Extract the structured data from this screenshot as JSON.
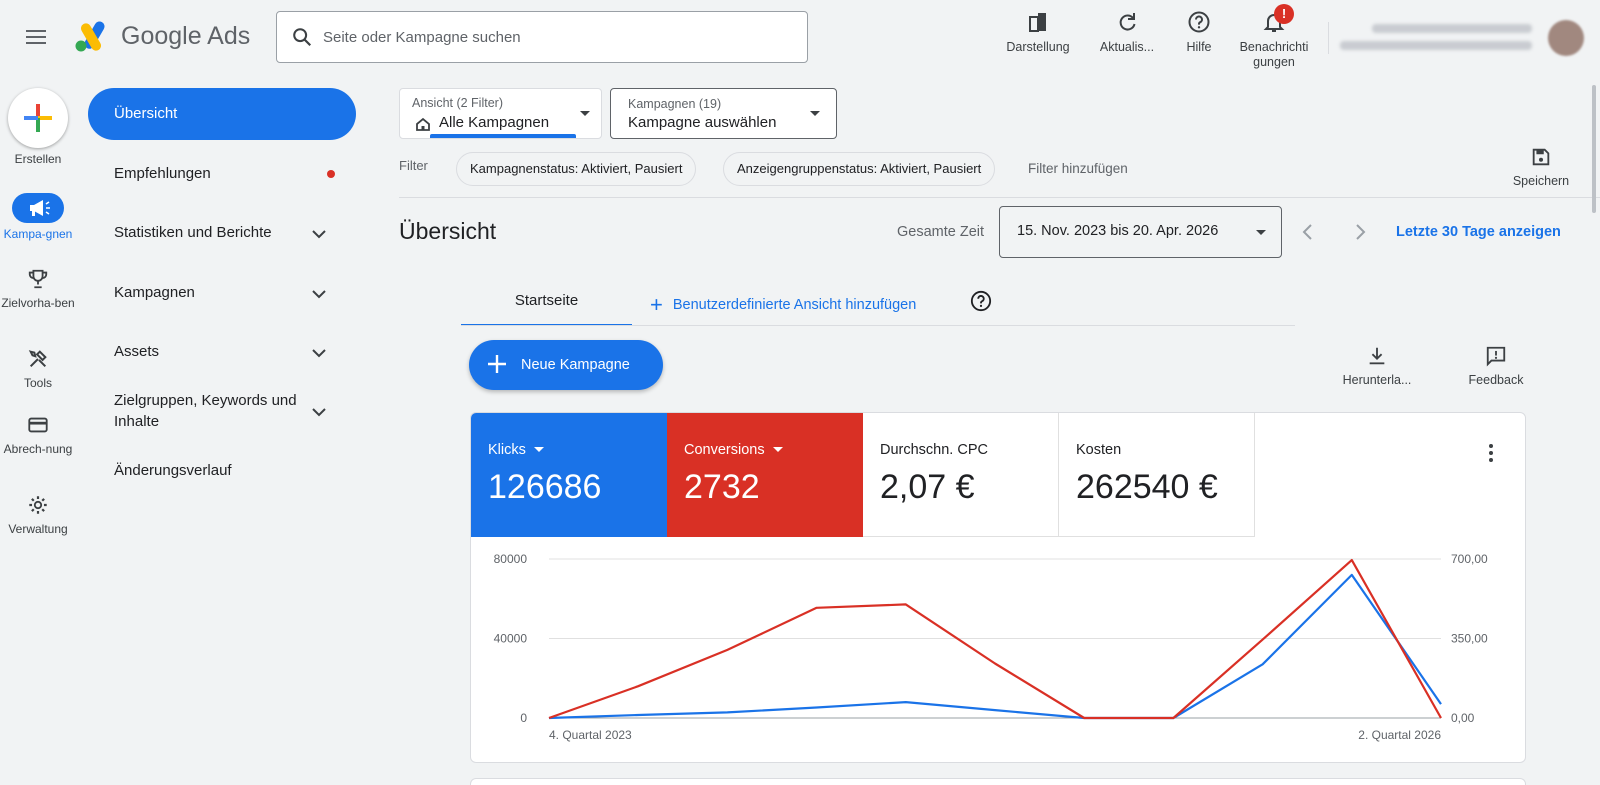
{
  "app": {
    "name": "Google Ads"
  },
  "search": {
    "placeholder": "Seite oder Kampagne suchen"
  },
  "top_actions": [
    {
      "label": "Darstellung",
      "icon": "appearance-icon"
    },
    {
      "label": "Aktualis...",
      "icon": "refresh-icon"
    },
    {
      "label": "Hilfe",
      "icon": "help-icon"
    },
    {
      "label": "Benachrichti gungen",
      "icon": "bell-icon",
      "badge": "!"
    }
  ],
  "rail": [
    {
      "label": "Erstellen",
      "icon": "plus-icon"
    },
    {
      "label": "Kampa-gnen",
      "icon": "megaphone-icon",
      "active": true
    },
    {
      "label": "Zielvorha-ben",
      "icon": "trophy-icon"
    },
    {
      "label": "Tools",
      "icon": "tools-icon"
    },
    {
      "label": "Abrech-nung",
      "icon": "credit-card-icon"
    },
    {
      "label": "Verwaltung",
      "icon": "gear-icon"
    }
  ],
  "sidenav": {
    "active": "Übersicht",
    "items": [
      "Empfehlungen",
      "Statistiken und Berichte",
      "Kampagnen",
      "Assets",
      "Zielgruppen, Keywords und Inhalte",
      "Änderungsverlauf"
    ]
  },
  "filters": {
    "view_label": "Ansicht (2 Filter)",
    "view_value": "Alle Kampagnen",
    "campaign_label": "Kampagnen (19)",
    "campaign_value": "Kampagne auswählen",
    "filter_label": "Filter",
    "chips": [
      "Kampagnenstatus: Aktiviert, Pausiert",
      "Anzeigengruppenstatus: Aktiviert, Pausiert"
    ],
    "add_filter": "Filter hinzufügen",
    "save": "Speichern"
  },
  "overview": {
    "title": "Übersicht",
    "time_label": "Gesamte Zeit",
    "date_range": "15. Nov. 2023 bis 20. Apr. 2026",
    "last30": "Letzte 30 Tage anzeigen"
  },
  "tabs": {
    "home": "Startseite",
    "add_view": "Benutzerdefinierte Ansicht hinzufügen"
  },
  "actions": {
    "new_campaign": "Neue Kampagne",
    "download": "Herunterla...",
    "feedback": "Feedback"
  },
  "metrics": [
    {
      "label": "Klicks",
      "value": "126686",
      "color": "#1a73e8"
    },
    {
      "label": "Conversions",
      "value": "2732",
      "color": "#d93025"
    },
    {
      "label": "Durchschn. CPC",
      "value": "2,07 €"
    },
    {
      "label": "Kosten",
      "value": "262540 €"
    }
  ],
  "chart_data": {
    "type": "line",
    "x_labels": [
      "4. Quartal 2023",
      "2. Quartal 2026"
    ],
    "left_axis": {
      "ticks": [
        "80000",
        "40000",
        "0"
      ],
      "range": [
        0,
        80000
      ]
    },
    "right_axis": {
      "ticks": [
        "700,00",
        "350,00",
        "0,00"
      ],
      "range": [
        0,
        700
      ]
    },
    "series": [
      {
        "name": "Klicks",
        "color": "#1a73e8",
        "axis": "left",
        "values": [
          0,
          1500,
          2800,
          5300,
          8000,
          4000,
          0,
          0,
          27000,
          72000,
          7000
        ]
      },
      {
        "name": "Conversions",
        "color": "#d93025",
        "axis": "right",
        "values": [
          0,
          140,
          300,
          485,
          500,
          240,
          0,
          0,
          345,
          695,
          0
        ]
      }
    ],
    "grid": true
  }
}
